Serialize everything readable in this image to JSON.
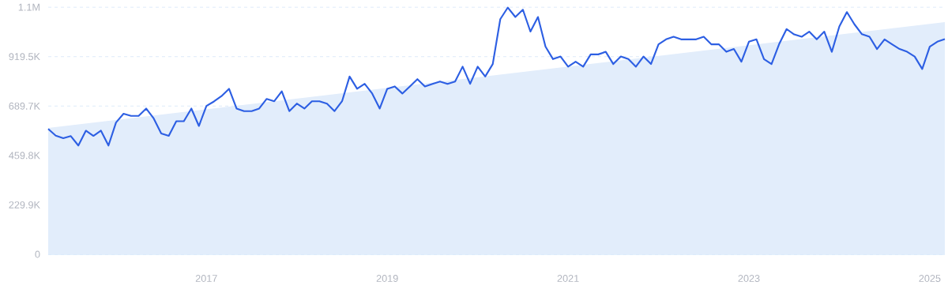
{
  "chart_data": {
    "type": "line",
    "x": [
      "2015-04",
      "2015-05",
      "2015-06",
      "2015-07",
      "2015-08",
      "2015-09",
      "2015-10",
      "2015-11",
      "2015-12",
      "2016-01",
      "2016-02",
      "2016-03",
      "2016-04",
      "2016-05",
      "2016-06",
      "2016-07",
      "2016-08",
      "2016-09",
      "2016-10",
      "2016-11",
      "2016-12",
      "2017-01",
      "2017-02",
      "2017-03",
      "2017-04",
      "2017-05",
      "2017-06",
      "2017-07",
      "2017-08",
      "2017-09",
      "2017-10",
      "2017-11",
      "2017-12",
      "2018-01",
      "2018-02",
      "2018-03",
      "2018-04",
      "2018-05",
      "2018-06",
      "2018-07",
      "2018-08",
      "2018-09",
      "2018-10",
      "2018-11",
      "2018-12",
      "2019-01",
      "2019-02",
      "2019-03",
      "2019-04",
      "2019-05",
      "2019-06",
      "2019-07",
      "2019-08",
      "2019-09",
      "2019-10",
      "2019-11",
      "2019-12",
      "2020-01",
      "2020-02",
      "2020-03",
      "2020-04",
      "2020-05",
      "2020-06",
      "2020-07",
      "2020-08",
      "2020-09",
      "2020-10",
      "2020-11",
      "2020-12",
      "2021-01",
      "2021-02",
      "2021-03",
      "2021-04",
      "2021-05",
      "2021-06",
      "2021-07",
      "2021-08",
      "2021-09",
      "2021-10",
      "2021-11",
      "2021-12",
      "2022-01",
      "2022-02",
      "2022-03",
      "2022-04",
      "2022-05",
      "2022-06",
      "2022-07",
      "2022-08",
      "2022-09",
      "2022-10",
      "2022-11",
      "2022-12",
      "2023-01",
      "2023-02",
      "2023-03",
      "2023-04",
      "2023-05",
      "2023-06",
      "2023-07",
      "2023-08",
      "2023-09",
      "2023-10",
      "2023-11",
      "2023-12",
      "2024-01",
      "2024-02",
      "2024-03",
      "2024-04",
      "2024-05",
      "2024-06",
      "2024-07",
      "2024-08",
      "2024-09",
      "2024-10",
      "2024-11",
      "2024-12",
      "2025-01",
      "2025-02",
      "2025-03"
    ],
    "series": [
      {
        "type": "area",
        "color": "#e2edfb",
        "x": [
          "2015-04",
          "2025-03"
        ],
        "values": [
          588000,
          1080000
        ]
      },
      {
        "color": "#2d5fe3",
        "values": [
          583000,
          552000,
          540000,
          550000,
          506000,
          575000,
          551000,
          575000,
          506000,
          613000,
          654000,
          644000,
          644000,
          678000,
          632000,
          562000,
          551000,
          619000,
          619000,
          678000,
          597000,
          690000,
          711000,
          736000,
          770000,
          678000,
          666000,
          666000,
          678000,
          723000,
          712000,
          758000,
          666000,
          701000,
          678000,
          712000,
          712000,
          701000,
          666000,
          712000,
          827000,
          770000,
          793000,
          748000,
          678000,
          770000,
          781000,
          748000,
          781000,
          815000,
          781000,
          793000,
          804000,
          793000,
          804000,
          873000,
          793000,
          873000,
          827000,
          885000,
          1094000,
          1148000,
          1104000,
          1138000,
          1036000,
          1104000,
          966000,
          908000,
          920000,
          873000,
          896000,
          873000,
          930000,
          930000,
          942000,
          885000,
          920000,
          908000,
          873000,
          920000,
          885000,
          977000,
          1000000,
          1012000,
          1000000,
          1000000,
          1000000,
          1012000,
          977000,
          977000,
          942000,
          955000,
          896000,
          989000,
          1000000,
          908000,
          885000,
          977000,
          1048000,
          1023000,
          1012000,
          1036000,
          1000000,
          1036000,
          942000,
          1060000,
          1127000,
          1070000,
          1024000,
          1012000,
          955000,
          1000000,
          977000,
          955000,
          942000,
          920000,
          862000,
          966000,
          989000,
          1001000
        ]
      }
    ],
    "xlim": [
      "2015-04",
      "2025-03"
    ],
    "xticks": [
      "2017",
      "2019",
      "2021",
      "2023",
      "2025"
    ],
    "ylim": [
      0,
      1150000
    ],
    "yticks": [
      0,
      {
        "value": 229900,
        "label": "229.9K"
      },
      {
        "value": 459800,
        "label": "459.8K"
      },
      {
        "value": 689700,
        "label": "689.7K"
      },
      {
        "value": 919500,
        "label": "919.5K"
      },
      {
        "value": 1149400,
        "label": "1.1M"
      }
    ],
    "grid": "y",
    "marker": "none",
    "line_style": "solid"
  }
}
